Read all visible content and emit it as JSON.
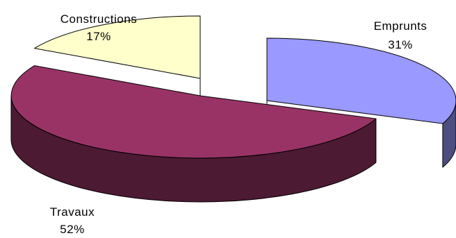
{
  "chart_data": {
    "type": "pie",
    "style": "3d-exploded",
    "title": "",
    "legend": "none",
    "slices": [
      {
        "label": "Emprunts",
        "value": 31,
        "value_label": "31%",
        "top_color": "#9999ff",
        "side_color": "#4d4d80"
      },
      {
        "label": "Travaux",
        "value": 52,
        "value_label": "52%",
        "top_color": "#993366",
        "side_color": "#4d1a33"
      },
      {
        "label": "Constructions",
        "value": 17,
        "value_label": "17%",
        "top_color": "#ffffcc",
        "side_color": "#808066"
      }
    ]
  }
}
